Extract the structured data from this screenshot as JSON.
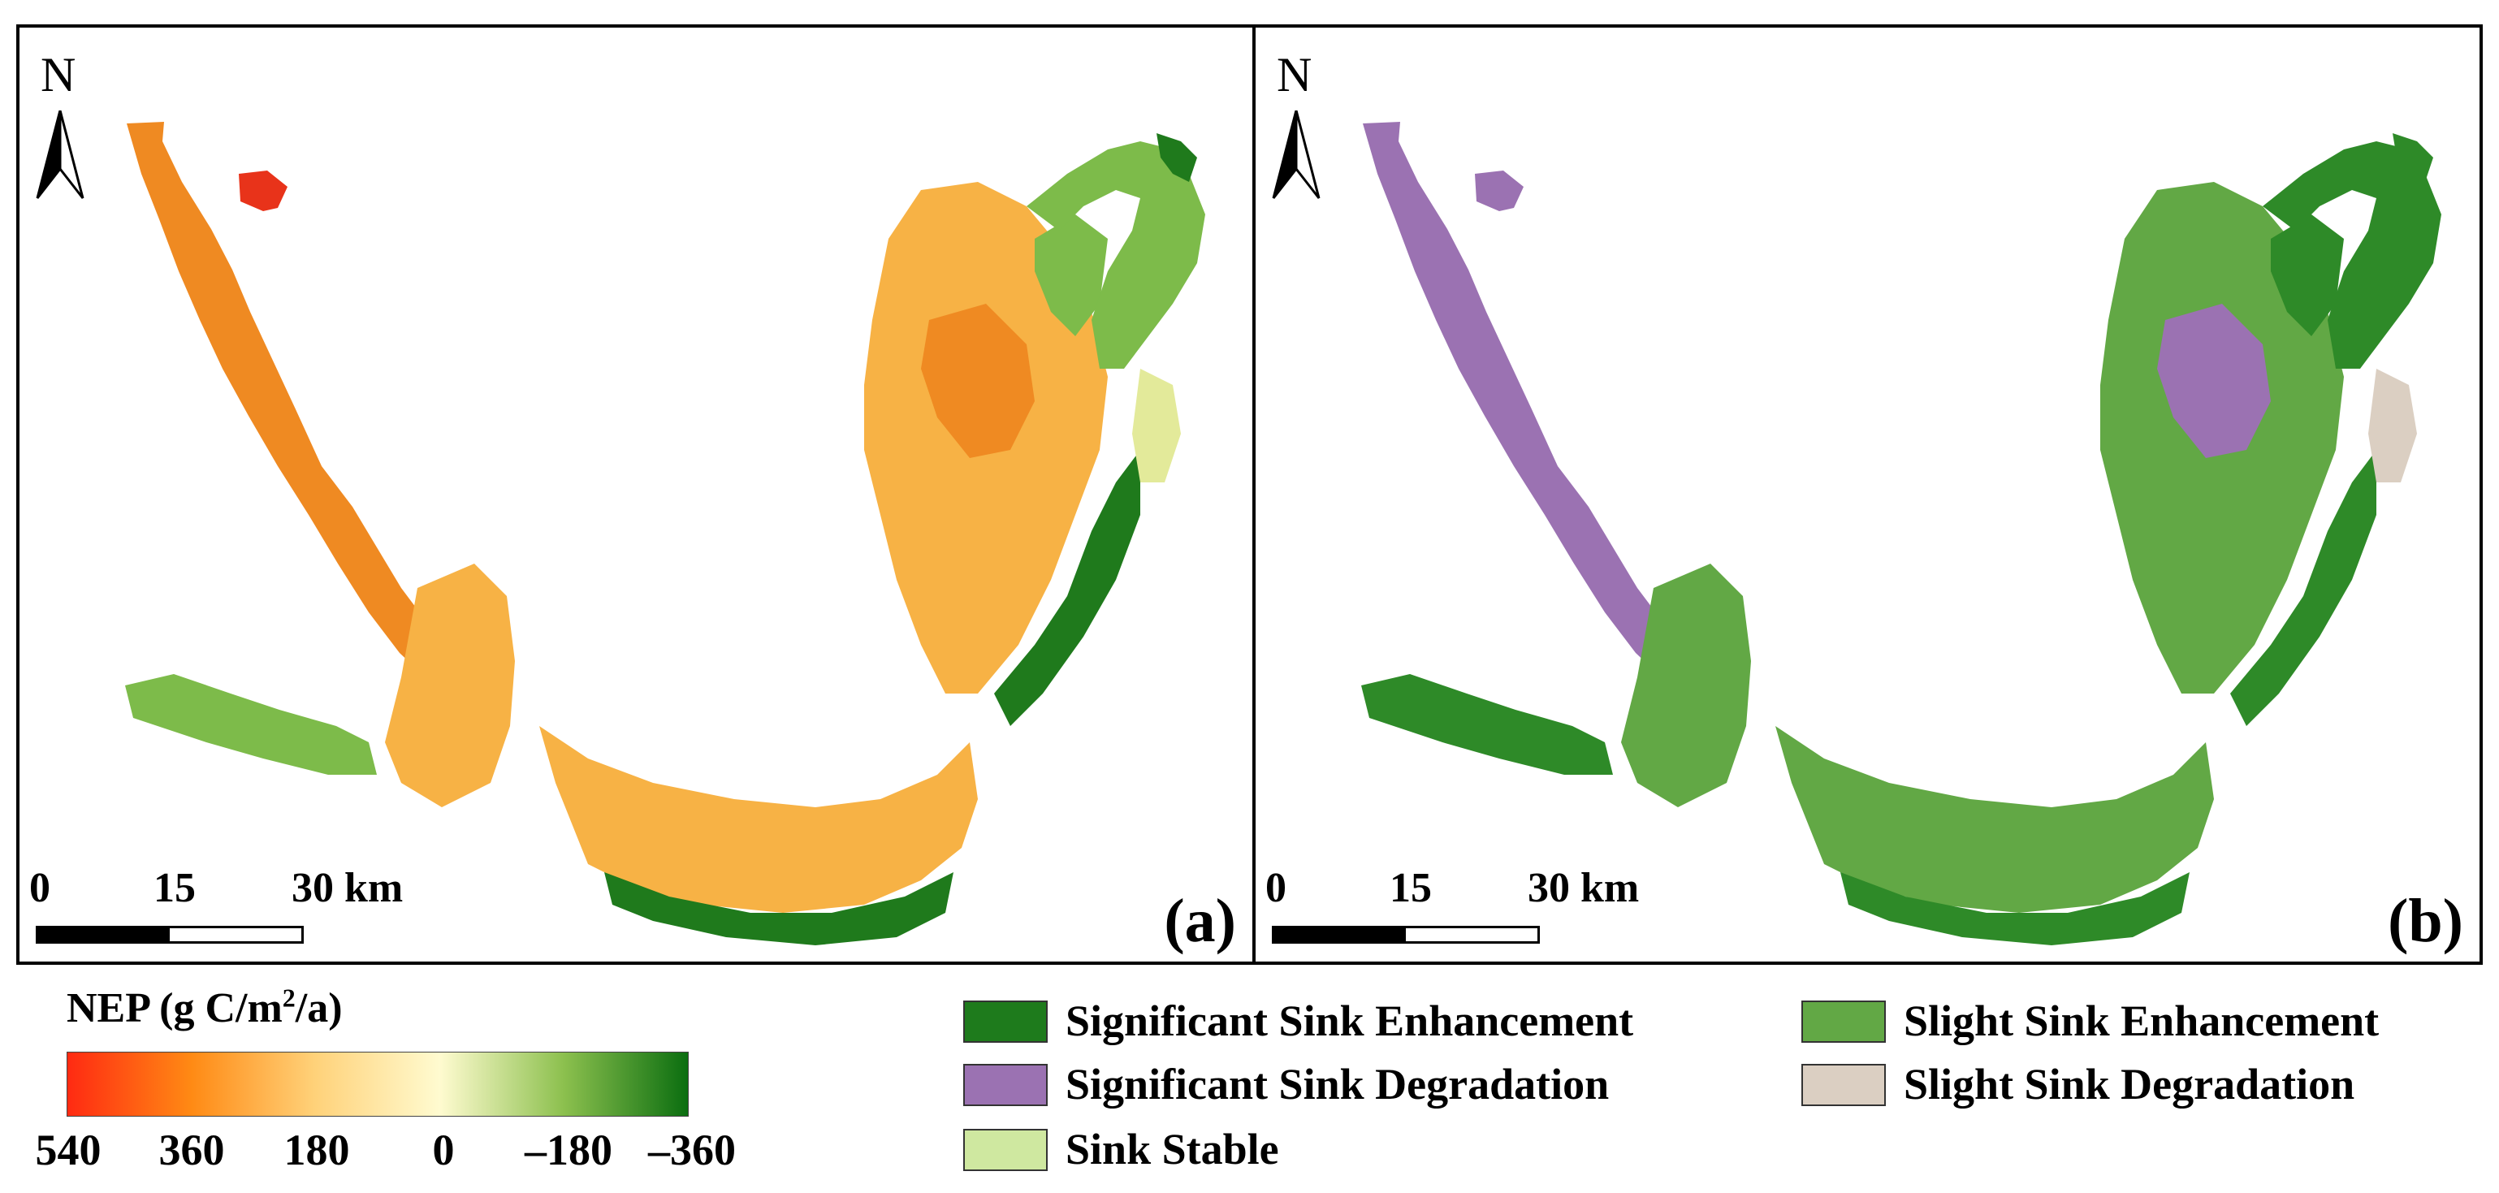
{
  "panels": {
    "a": {
      "north_label": "N",
      "panel_label": "(a)",
      "scale_labels": [
        "0",
        "15",
        "30 km"
      ]
    },
    "b": {
      "north_label": "N",
      "panel_label": "(b)",
      "scale_labels": [
        "0",
        "15",
        "30 km"
      ]
    }
  },
  "colorbar": {
    "title_prefix": "NEP (g C/m",
    "title_sup": "2",
    "title_suffix": "/a)",
    "ticks": [
      "540",
      "360",
      "180",
      "0",
      "–180",
      "–360"
    ],
    "colors": [
      "#ff2a12",
      "#ff8a14",
      "#ffd27a",
      "#fffbd0",
      "#8cc04e",
      "#0b6e10"
    ]
  },
  "legend": {
    "items": [
      {
        "label": "Significant Sink Enhancement",
        "color": "#1e7b1c"
      },
      {
        "label": "Slight Sink Enhancement",
        "color": "#62a845"
      },
      {
        "label": "Significant Sink Degradation",
        "color": "#9b72b2"
      },
      {
        "label": "Slight Sink Degradation",
        "color": "#dbcfc2"
      },
      {
        "label": "Sink Stable",
        "color": "#cfe8a0"
      }
    ]
  },
  "map_colors": {
    "a": {
      "base": "#f7b245",
      "dark": "#ef8a22",
      "hot": "#e8331a",
      "green": "#7dbb4a",
      "darkgreen": "#1f7a1c",
      "pale": "#e3ea9a"
    },
    "b": {
      "base": "#62a845",
      "dark": "#2e8a28",
      "purple": "#9b72b2",
      "beige": "#dbcfc2",
      "pale": "#cfe8a0"
    }
  }
}
